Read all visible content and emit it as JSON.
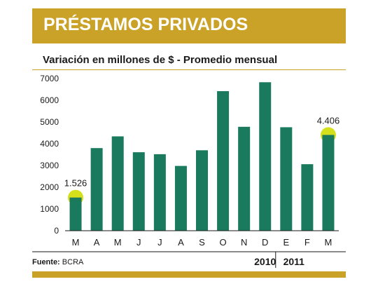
{
  "header": {
    "title": "PRÉSTAMOS PRIVADOS"
  },
  "subtitle": "Variación en millones de $ - Promedio mensual",
  "source": {
    "label": "Fuente:",
    "value": "BCRA"
  },
  "colors": {
    "bar": "#1a7a5e",
    "accent": "#c9a227",
    "highlight": "#d5e01c"
  },
  "chart_data": {
    "type": "bar",
    "title": "Variación en millones de $ - Promedio mensual",
    "categories": [
      "M",
      "A",
      "M",
      "J",
      "J",
      "A",
      "S",
      "O",
      "N",
      "D",
      "E",
      "F",
      "M"
    ],
    "values": [
      1526,
      3800,
      4340,
      3610,
      3520,
      2980,
      3700,
      6420,
      4780,
      6830,
      4760,
      3060,
      4406
    ],
    "ylim": [
      0,
      7000
    ],
    "yticks": [
      0,
      1000,
      2000,
      3000,
      4000,
      5000,
      6000,
      7000
    ],
    "grid": false,
    "annotations": [
      {
        "index": 0,
        "text": "1.526"
      },
      {
        "index": 12,
        "text": "4.406"
      }
    ],
    "year_groups": [
      {
        "label": "2010",
        "from": 0,
        "to": 9
      },
      {
        "label": "2011",
        "from": 10,
        "to": 12
      }
    ]
  }
}
